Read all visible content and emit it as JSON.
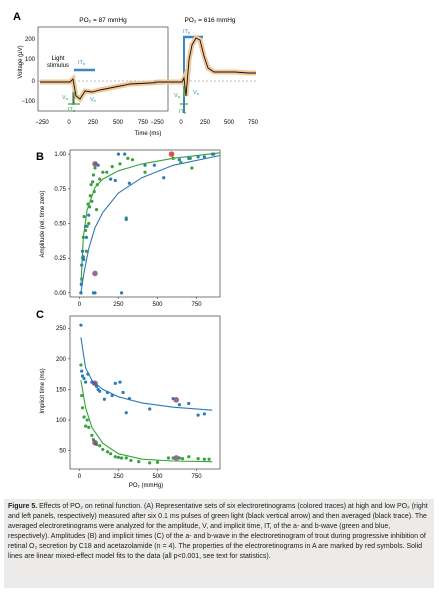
{
  "panel_labels": {
    "a": "A",
    "b": "B",
    "c": "C"
  },
  "colors": {
    "a_wave": "#36a23c",
    "b_wave": "#2b7bb8",
    "highlight": "#d9342b",
    "purple": "#8a4d87",
    "trace_band": "#f0c89a",
    "stimulus_bar": "#3e86c0"
  },
  "panel_a": {
    "left_title": "PO₂ = 87 mmHg",
    "right_title": "PO₂ = 616 mmHg",
    "ylabel": "Voltage (µV)",
    "xlabel": "Time (ms)",
    "y_ticks": [
      "200",
      "100",
      "0",
      "−100"
    ],
    "x_ticks": [
      "−250",
      "0",
      "250",
      "500",
      "750"
    ],
    "stim_label": "Light stimulus",
    "labels": {
      "it_b": "IT_b",
      "it_a": "IT_a",
      "v_a": "V_a",
      "v_b": "V_b"
    }
  },
  "chart_data": [
    {
      "type": "scatter",
      "panel": "B",
      "ylabel": "Amplitude (rel. time zero)",
      "xlabel": "",
      "x_ticks": [
        "0",
        "250",
        "500",
        "750"
      ],
      "y_ticks": [
        "0.00",
        "0.25",
        "0.50",
        "0.75",
        "1.00"
      ],
      "xlim": [
        -60,
        900
      ],
      "ylim": [
        -0.03,
        1.03
      ],
      "series": [
        {
          "color": "a_wave",
          "points": [
            [
              10,
              0.0
            ],
            [
              15,
              0.1
            ],
            [
              20,
              0.25
            ],
            [
              25,
              0.4
            ],
            [
              30,
              0.55
            ],
            [
              40,
              0.45
            ],
            [
              45,
              0.3
            ],
            [
              50,
              0.48
            ],
            [
              55,
              0.64
            ],
            [
              60,
              0.5
            ],
            [
              65,
              0.62
            ],
            [
              70,
              0.7
            ],
            [
              75,
              0.78
            ],
            [
              80,
              0.66
            ],
            [
              85,
              0.8
            ],
            [
              90,
              0.85
            ],
            [
              95,
              0.73
            ],
            [
              100,
              0.9
            ],
            [
              105,
              0.93
            ],
            [
              110,
              0.6
            ],
            [
              115,
              0.78
            ],
            [
              130,
              0.82
            ],
            [
              150,
              0.87
            ],
            [
              175,
              0.87
            ],
            [
              210,
              0.91
            ],
            [
              260,
              0.93
            ],
            [
              300,
              0.54
            ],
            [
              310,
              0.97
            ],
            [
              340,
              0.96
            ],
            [
              420,
              0.87
            ],
            [
              600,
              0.97
            ],
            [
              650,
              0.94
            ],
            [
              710,
              0.97
            ],
            [
              720,
              0.9
            ],
            [
              850,
              1.0
            ]
          ],
          "fit": [
            [
              10,
              0.05
            ],
            [
              25,
              0.4
            ],
            [
              50,
              0.6
            ],
            [
              100,
              0.76
            ],
            [
              150,
              0.82
            ],
            [
              250,
              0.88
            ],
            [
              400,
              0.93
            ],
            [
              600,
              0.97
            ],
            [
              900,
              1.01
            ]
          ]
        },
        {
          "color": "b_wave",
          "points": [
            [
              10,
              0.0
            ],
            [
              12,
              0.06
            ],
            [
              15,
              0.2
            ],
            [
              20,
              0.3
            ],
            [
              25,
              0.26
            ],
            [
              28,
              0.24
            ],
            [
              90,
              0.0
            ],
            [
              100,
              0.0
            ],
            [
              270,
              0.0
            ],
            [
              40,
              0.48
            ],
            [
              45,
              0.4
            ],
            [
              60,
              0.56
            ],
            [
              120,
              0.92
            ],
            [
              200,
              0.82
            ],
            [
              230,
              0.81
            ],
            [
              250,
              1.0
            ],
            [
              290,
              1.0
            ],
            [
              300,
              0.53
            ],
            [
              320,
              0.79
            ],
            [
              420,
              0.92
            ],
            [
              480,
              0.92
            ],
            [
              540,
              0.83
            ],
            [
              640,
              0.96
            ],
            [
              700,
              0.97
            ],
            [
              760,
              0.98
            ],
            [
              800,
              0.98
            ],
            [
              860,
              1.0
            ]
          ],
          "fit": [
            [
              10,
              0.0
            ],
            [
              30,
              0.15
            ],
            [
              60,
              0.32
            ],
            [
              100,
              0.47
            ],
            [
              150,
              0.58
            ],
            [
              250,
              0.72
            ],
            [
              400,
              0.83
            ],
            [
              600,
              0.92
            ],
            [
              900,
              0.99
            ]
          ]
        }
      ],
      "highlights": [
        [
          100,
          0.14,
          "purple"
        ],
        [
          100,
          0.93,
          "purple"
        ],
        [
          590,
          1.0,
          "highlight"
        ]
      ]
    },
    {
      "type": "scatter",
      "panel": "C",
      "ylabel": "Implicit time (ms)",
      "xlabel": "PO₂ (mmHg)",
      "x_ticks": [
        "0",
        "250",
        "500",
        "750"
      ],
      "y_ticks": [
        "50",
        "100",
        "150",
        "200",
        "250"
      ],
      "xlim": [
        -60,
        900
      ],
      "ylim": [
        20,
        270
      ],
      "series": [
        {
          "color": "b_wave",
          "points": [
            [
              10,
              255
            ],
            [
              15,
              180
            ],
            [
              20,
              172
            ],
            [
              30,
              168
            ],
            [
              40,
              162
            ],
            [
              55,
              175
            ],
            [
              80,
              162
            ],
            [
              90,
              160
            ],
            [
              100,
              160
            ],
            [
              110,
              155
            ],
            [
              120,
              150
            ],
            [
              130,
              147
            ],
            [
              160,
              134
            ],
            [
              180,
              145
            ],
            [
              210,
              140
            ],
            [
              230,
              160
            ],
            [
              260,
              162
            ],
            [
              280,
              145
            ],
            [
              300,
              112
            ],
            [
              320,
              135
            ],
            [
              450,
              118
            ],
            [
              600,
              135
            ],
            [
              640,
              125
            ],
            [
              700,
              127
            ],
            [
              760,
              108
            ],
            [
              800,
              110
            ]
          ],
          "fit": [
            [
              10,
              235
            ],
            [
              40,
              185
            ],
            [
              80,
              165
            ],
            [
              150,
              150
            ],
            [
              250,
              138
            ],
            [
              400,
              128
            ],
            [
              600,
              121
            ],
            [
              850,
              116
            ]
          ]
        },
        {
          "color": "a_wave",
          "points": [
            [
              10,
              190
            ],
            [
              15,
              140
            ],
            [
              20,
              120
            ],
            [
              30,
              105
            ],
            [
              40,
              90
            ],
            [
              50,
              100
            ],
            [
              60,
              88
            ],
            [
              80,
              75
            ],
            [
              90,
              68
            ],
            [
              100,
              63
            ],
            [
              110,
              60
            ],
            [
              130,
              58
            ],
            [
              150,
              52
            ],
            [
              180,
              48
            ],
            [
              200,
              45
            ],
            [
              230,
              40
            ],
            [
              250,
              39
            ],
            [
              270,
              38
            ],
            [
              300,
              38
            ],
            [
              330,
              34
            ],
            [
              380,
              32
            ],
            [
              450,
              30
            ],
            [
              500,
              31
            ],
            [
              570,
              38
            ],
            [
              600,
              38
            ],
            [
              640,
              38
            ],
            [
              660,
              37
            ],
            [
              700,
              40
            ],
            [
              760,
              37
            ],
            [
              800,
              36
            ],
            [
              830,
              36
            ]
          ],
          "fit": [
            [
              10,
              165
            ],
            [
              40,
              120
            ],
            [
              80,
              88
            ],
            [
              150,
              62
            ],
            [
              250,
              45
            ],
            [
              400,
              36
            ],
            [
              600,
              33
            ],
            [
              850,
              32
            ]
          ]
        }
      ],
      "highlights": [
        [
          100,
          160,
          "purple"
        ],
        [
          100,
          63,
          "purple"
        ],
        [
          620,
          133,
          "purple"
        ],
        [
          620,
          38,
          "purple"
        ]
      ]
    }
  ],
  "caption": {
    "title": "Figure 5.",
    "text": " Effects of PO₂ on retinal function. (A) Representative sets of six electroretinograms (colored traces) at high and low PO₂ (right and left panels, respectively) measured after six 0.1 ms pulses of green light (black vertical arrow) and then averaged (black trace). The averaged electroretinograms were analyzed for the amplitude, V, and implicit time, IT, of the a- and b-wave (green and blue, respectively). Amplitudes (B) and implicit times (C) of the a- and b-wave in the electroretinogram of trout during progressive inhibition of retinal O₂ secretion by C18 and acetazolamide (n = 4). The properties of the electroretinograms in A are marked by red symbols. Solid lines are linear mixed-effect model fits to the data (all p<0.001, see text for statistics)."
  }
}
